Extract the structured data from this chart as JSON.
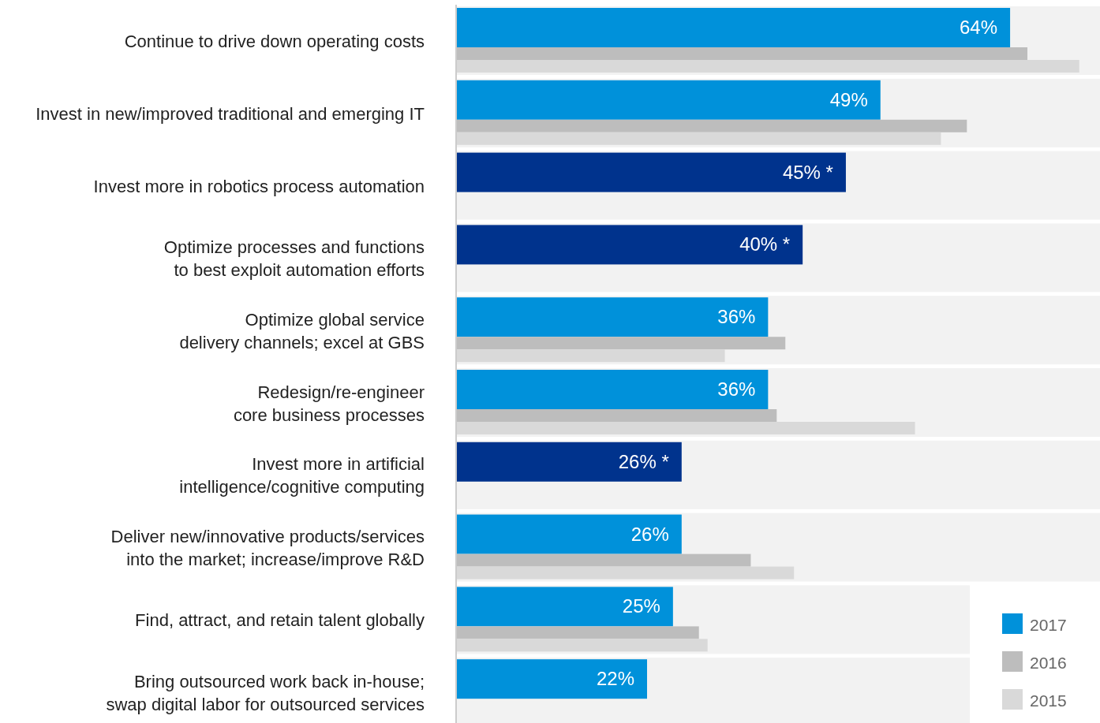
{
  "chart_data": {
    "type": "bar",
    "orientation": "horizontal",
    "categories": [
      "Continue to drive down operating costs",
      "Invest in new/improved traditional and emerging IT",
      "Invest more in robotics process automation",
      "Optimize processes and functions\nto best exploit automation efforts",
      "Optimize global service\ndelivery channels; excel at GBS",
      "Redesign/re-engineer\ncore business processes",
      "Invest more in artificial\nintelligence/cognitive computing",
      "Deliver new/innovative products/services\ninto the market; increase/improve R&D",
      "Find, attract, and retain talent globally",
      "Bring outsourced work back in-house;\nswap digital labor for outsourced services"
    ],
    "series": [
      {
        "name": "2017",
        "color": "#0091da",
        "colors": [
          "#0091da",
          "#0091da",
          "#00338d",
          "#00338d",
          "#0091da",
          "#0091da",
          "#00338d",
          "#0091da",
          "#0091da",
          "#0091da"
        ],
        "values": [
          64,
          49,
          45,
          40,
          36,
          36,
          26,
          26,
          25,
          22
        ],
        "value_labels": [
          "64%",
          "49%",
          "45% *",
          "40% *",
          "36%",
          "36%",
          "26% *",
          "26%",
          "25%",
          "22%"
        ]
      },
      {
        "name": "2016",
        "color": "#bdbdbd",
        "values": [
          66,
          59,
          null,
          null,
          38,
          37,
          null,
          34,
          28,
          null
        ]
      },
      {
        "name": "2015",
        "color": "#d9d9d9",
        "values": [
          72,
          56,
          null,
          null,
          31,
          53,
          null,
          39,
          29,
          null
        ]
      }
    ],
    "bands": [
      {
        "axis": "y",
        "from": "Continue to drive down operating costs",
        "to": "Continue to drive down operating costs",
        "color": "#f2f2f2"
      },
      {
        "axis": "y",
        "from": "Invest in new/improved traditional and emerging IT",
        "to": "Invest in new/improved traditional and emerging IT",
        "color": "#f2f2f2"
      },
      {
        "axis": "y",
        "from": "Invest more in robotics process automation",
        "to": "Invest more in robotics process automation",
        "color": "#f2f2f2"
      },
      {
        "axis": "y",
        "from": "Optimize processes and functions\nto best exploit automation efforts",
        "to": "Optimize processes and functions\nto best exploit automation efforts",
        "color": "#f2f2f2"
      },
      {
        "axis": "y",
        "from": "Optimize global service\ndelivery channels; excel at GBS",
        "to": "Optimize global service\ndelivery channels; excel at GBS",
        "color": "#f2f2f2"
      },
      {
        "axis": "y",
        "from": "Redesign/re-engineer\ncore business processes",
        "to": "Redesign/re-engineer\ncore business processes",
        "color": "#f2f2f2"
      },
      {
        "axis": "y",
        "from": "Invest more in artificial\nintelligence/cognitive computing",
        "to": "Invest more in artificial\nintelligence/cognitive computing",
        "color": "#f2f2f2"
      },
      {
        "axis": "y",
        "from": "Deliver new/innovative products/services\ninto the market; increase/improve R&D",
        "to": "Deliver new/innovative products/services\ninto the market; increase/improve R&D",
        "color": "#f2f2f2"
      },
      {
        "axis": "y",
        "from": "Find, attract, and retain talent globally",
        "to": "Find, attract, and retain talent globally",
        "color": "#f2f2f2"
      },
      {
        "axis": "y",
        "from": "Bring outsourced work back in-house;\nswap digital labor for outsourced services",
        "to": "Bring outsourced work back in-house;\nswap digital labor for outsourced services",
        "color": "#f2f2f2"
      }
    ],
    "xlim": [
      0,
      74.4
    ],
    "legend": "bottom right"
  }
}
